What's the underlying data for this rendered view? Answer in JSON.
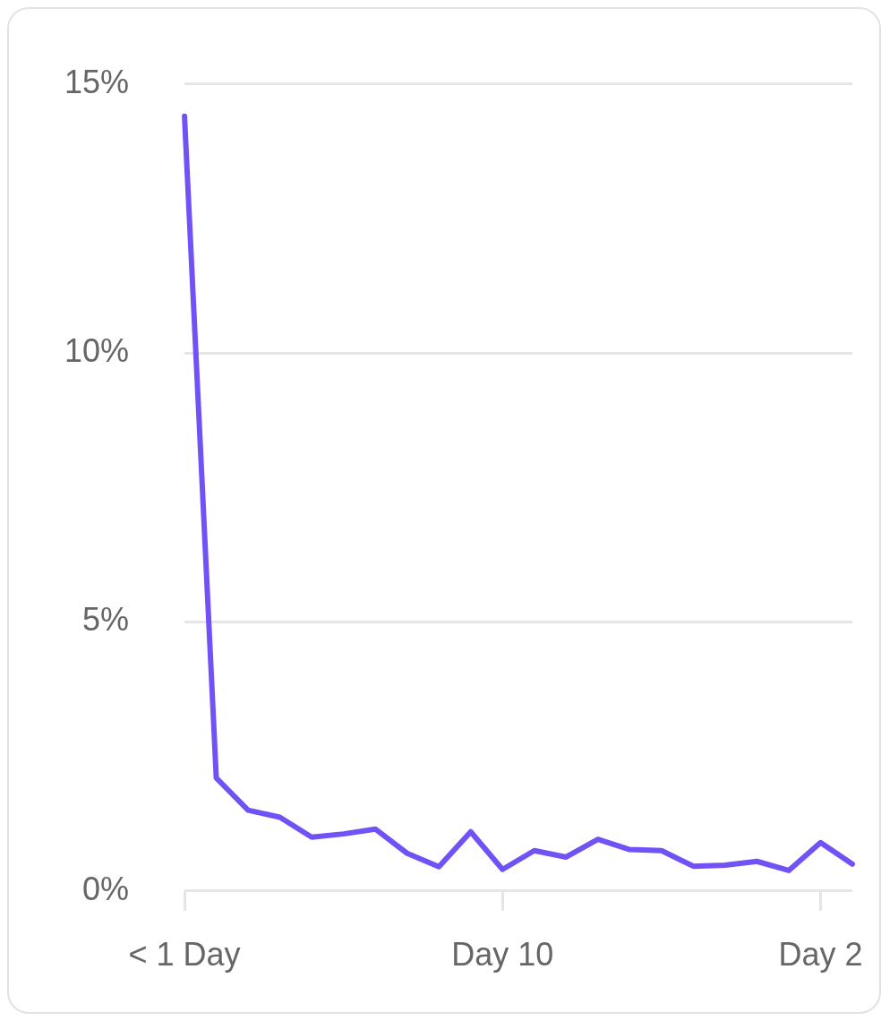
{
  "chart_data": {
    "type": "line",
    "categories": [
      "< 1 Day",
      null,
      null,
      null,
      null,
      null,
      null,
      null,
      null,
      null,
      "Day 10",
      null,
      null,
      null,
      null,
      null,
      null,
      null,
      null,
      null,
      "Day 2",
      null
    ],
    "series": [
      {
        "color": "#7152f5",
        "values": [
          14.4,
          2.1,
          1.5,
          1.37,
          1.0,
          1.06,
          1.15,
          0.7,
          0.45,
          1.1,
          0.4,
          0.75,
          0.63,
          0.96,
          0.77,
          0.75,
          0.46,
          0.48,
          0.55,
          0.38,
          0.9,
          0.5
        ]
      }
    ],
    "ylim": [
      0,
      15
    ],
    "yticks": [
      {
        "value": 0,
        "label": "0%"
      },
      {
        "value": 5,
        "label": "5%"
      },
      {
        "value": 10,
        "label": "10%"
      },
      {
        "value": 15,
        "label": "15%"
      }
    ],
    "grid": "y",
    "legend": false,
    "marker": "none",
    "line_style": "solid"
  }
}
